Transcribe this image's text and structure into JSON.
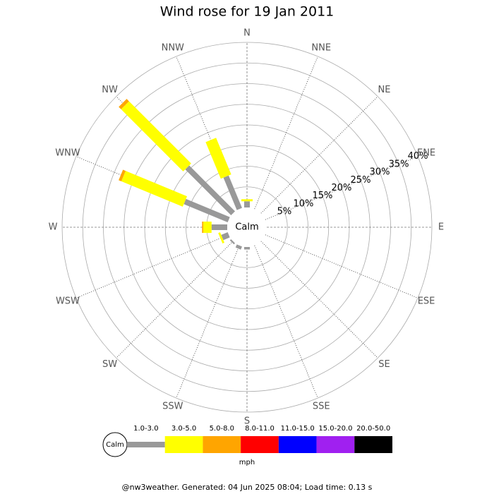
{
  "chart_data": {
    "type": "windrose",
    "title": "Wind rose for 19 Jan 2011",
    "categories": [
      "N",
      "NNE",
      "NE",
      "ENE",
      "E",
      "ESE",
      "SE",
      "SSE",
      "S",
      "SSW",
      "SW",
      "WSW",
      "W",
      "WNW",
      "NW",
      "NNW"
    ],
    "series": [
      {
        "name": "1.0-3.0",
        "color": "#999999",
        "values": [
          1.5,
          0,
          0,
          0,
          0,
          0,
          0,
          0,
          0.6,
          0.8,
          0.4,
          1.7,
          3.8,
          11.5,
          15.7,
          8.5
        ]
      },
      {
        "name": "3.0-5.0",
        "color": "#ffff00",
        "values": [
          0.5,
          0,
          0,
          0,
          0,
          0,
          0,
          0,
          0,
          0,
          0,
          0.5,
          2.0,
          16.1,
          21.3,
          9.6
        ]
      },
      {
        "name": "5.0-8.0",
        "color": "#ffa500",
        "values": [
          0,
          0,
          0,
          0,
          0,
          0,
          0,
          0,
          0,
          0,
          0,
          0,
          0.3,
          0.7,
          0.8,
          0
        ]
      },
      {
        "name": "8.0-11.0",
        "color": "#ff0000",
        "values": [
          0,
          0,
          0,
          0,
          0,
          0,
          0,
          0,
          0,
          0,
          0,
          0,
          0,
          0,
          0,
          0
        ]
      },
      {
        "name": "11.0-15.0",
        "color": "#0000ff",
        "values": [
          0,
          0,
          0,
          0,
          0,
          0,
          0,
          0,
          0,
          0,
          0,
          0,
          0,
          0,
          0,
          0
        ]
      },
      {
        "name": "15.0-20.0",
        "color": "#a020f0",
        "values": [
          0,
          0,
          0,
          0,
          0,
          0,
          0,
          0,
          0,
          0,
          0,
          0,
          0,
          0,
          0,
          0
        ]
      },
      {
        "name": "20.0-50.0",
        "color": "#000000",
        "values": [
          0,
          0,
          0,
          0,
          0,
          0,
          0,
          0,
          0,
          0,
          0,
          0,
          0,
          0,
          0,
          0
        ]
      }
    ],
    "rlim": [
      0,
      40
    ],
    "rticks": [
      {
        "value": 5,
        "label": "5%"
      },
      {
        "value": 10,
        "label": "10%"
      },
      {
        "value": 15,
        "label": "15%"
      },
      {
        "value": 20,
        "label": "20%"
      },
      {
        "value": 25,
        "label": "25%"
      },
      {
        "value": 30,
        "label": "30%"
      },
      {
        "value": 35,
        "label": "35%"
      },
      {
        "value": 40,
        "label": "40%"
      }
    ],
    "calm_label": "Calm",
    "legend_unit": "mph",
    "footer": "@nw3weather. Generated: 04 Jun 2025 08:04; Load time: 0.13 s"
  }
}
